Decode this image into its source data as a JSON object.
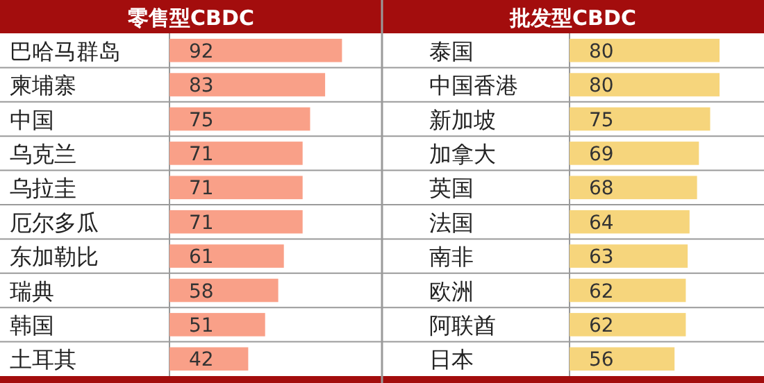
{
  "chart_data": [
    {
      "type": "bar",
      "orientation": "horizontal",
      "title": "零售型CBDC",
      "categories": [
        "巴哈马群岛",
        "柬埔寨",
        "中国",
        "乌克兰",
        "乌拉圭",
        "厄尔多瓜",
        "东加勒比",
        "瑞典",
        "韩国",
        "土耳其"
      ],
      "values": [
        92,
        83,
        75,
        71,
        71,
        71,
        61,
        58,
        51,
        42
      ],
      "color": "#f9a088",
      "data_labels": true
    },
    {
      "type": "bar",
      "orientation": "horizontal",
      "title": "批发型CBDC",
      "categories": [
        "泰国",
        "中国香港",
        "新加坡",
        "加拿大",
        "英国",
        "法国",
        "南非",
        "欧洲",
        "阿联酋",
        "日本"
      ],
      "values": [
        80,
        80,
        75,
        69,
        68,
        64,
        63,
        62,
        62,
        56
      ],
      "color": "#f6d57c",
      "data_labels": true
    }
  ]
}
